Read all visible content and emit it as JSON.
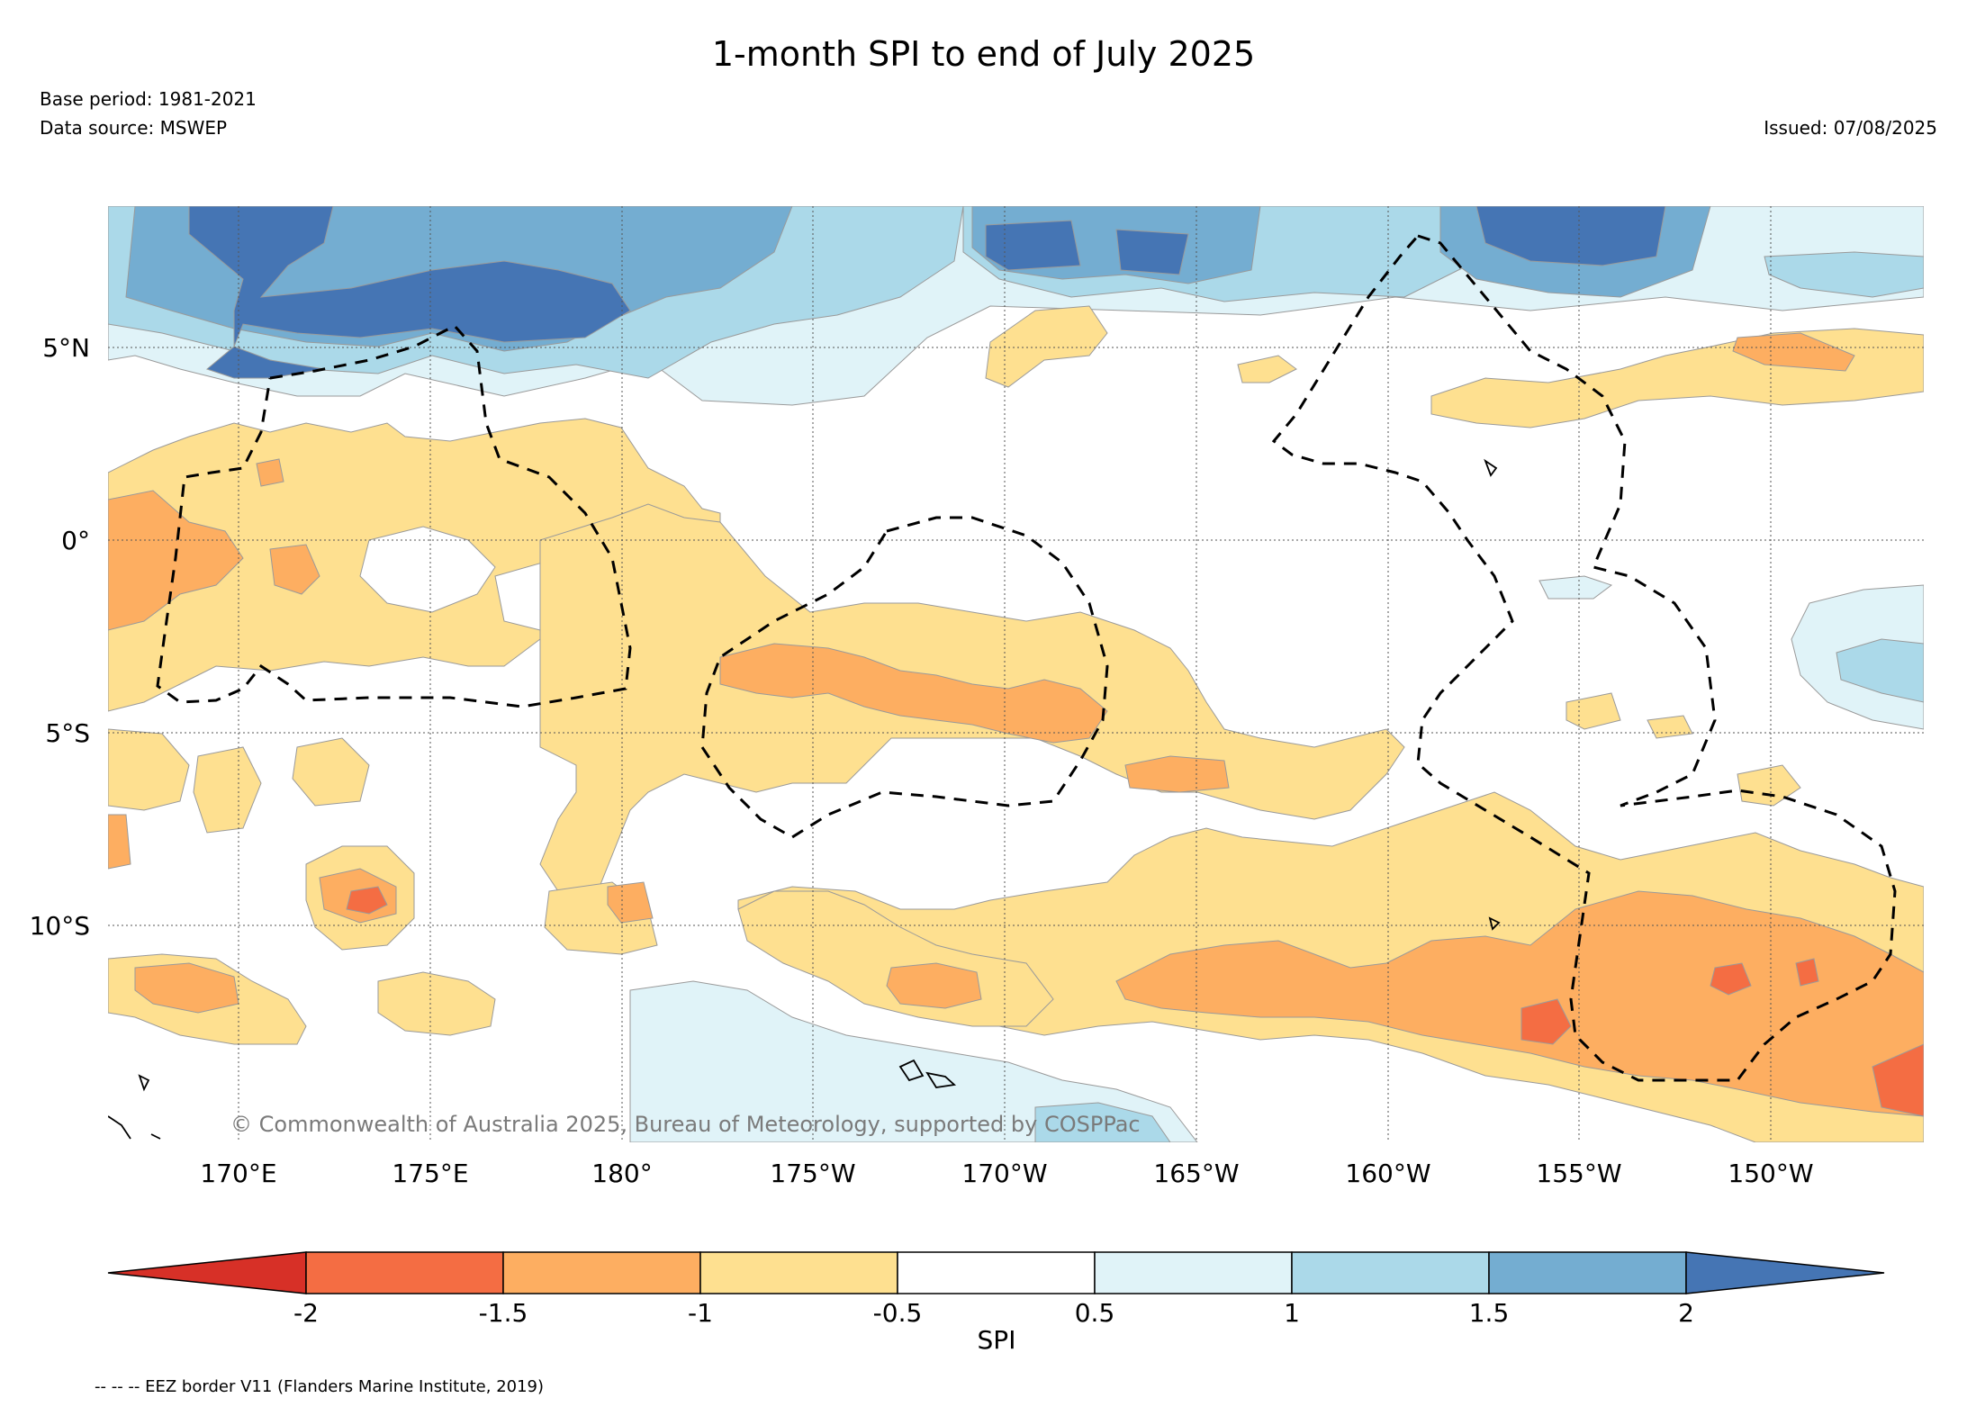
{
  "header": {
    "title": "1-month SPI to end of July 2025",
    "base_period": "Base period: 1981-2021",
    "data_source": "Data source: MSWEP",
    "issued": "Issued: 07/08/2025"
  },
  "map": {
    "copyright": "© Commonwealth of Australia 2025, Bureau of Meteorology, supported by COSPPac",
    "lon_range": [
      167,
      214.5
    ],
    "lat_range": [
      -15.5,
      8.8
    ],
    "lat_ticks": [
      {
        "value": 5,
        "label": "5°N"
      },
      {
        "value": 0,
        "label": "0°"
      },
      {
        "value": -5,
        "label": "5°S"
      },
      {
        "value": -10,
        "label": "10°S"
      }
    ],
    "lon_ticks": [
      {
        "value": 170,
        "label": "170°E"
      },
      {
        "value": 175,
        "label": "175°E"
      },
      {
        "value": 180,
        "label": "180°"
      },
      {
        "value": 185,
        "label": "175°W"
      },
      {
        "value": 190,
        "label": "170°W"
      },
      {
        "value": 195,
        "label": "165°W"
      },
      {
        "value": 200,
        "label": "160°W"
      },
      {
        "value": 205,
        "label": "155°W"
      },
      {
        "value": 210,
        "label": "150°W"
      }
    ],
    "gridlines": "dotted"
  },
  "colorbar": {
    "label": "SPI",
    "ticks": [
      "-2",
      "-1.5",
      "-1",
      "-0.5",
      "0.5",
      "1",
      "1.5",
      "2"
    ],
    "classes": [
      {
        "range": "< -2",
        "color": "#d73027"
      },
      {
        "range": "-2 to -1.5",
        "color": "#f46d43"
      },
      {
        "range": "-1.5 to -1",
        "color": "#fdae61"
      },
      {
        "range": "-1 to -0.5",
        "color": "#fee090"
      },
      {
        "range": "-0.5 to 0.5",
        "color": "#ffffff"
      },
      {
        "range": "0.5 to 1",
        "color": "#e0f3f8"
      },
      {
        "range": "1 to 1.5",
        "color": "#abd9e9"
      },
      {
        "range": "1.5 to 2",
        "color": "#74add1"
      },
      {
        "range": "> 2",
        "color": "#4575b4"
      }
    ]
  },
  "legend": {
    "eez_note": "-- -- -- EEZ border V11 (Flanders Marine Institute, 2019)"
  }
}
